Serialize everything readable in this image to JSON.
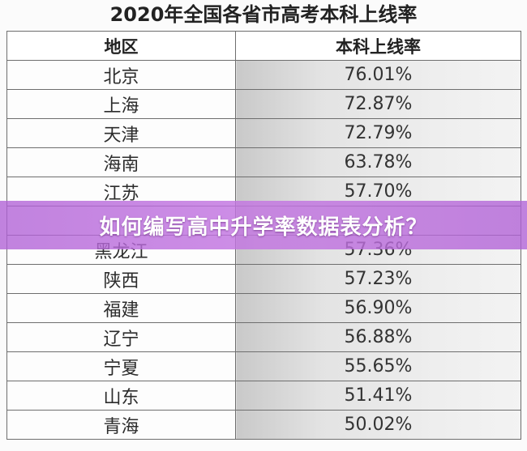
{
  "table": {
    "title": "2020年全国各省市高考本科上线率",
    "headers": [
      "地区",
      "本科上线率"
    ],
    "rows": [
      {
        "region": "北京",
        "rate": "76.01%"
      },
      {
        "region": "上海",
        "rate": "72.87%"
      },
      {
        "region": "天津",
        "rate": "72.79%"
      },
      {
        "region": "海南",
        "rate": "63.78%"
      },
      {
        "region": "江苏",
        "rate": "57.70%"
      },
      {
        "region": "",
        "rate": ""
      },
      {
        "region": "黑龙江",
        "rate": "57.36%"
      },
      {
        "region": "陕西",
        "rate": "57.23%"
      },
      {
        "region": "福建",
        "rate": "56.90%"
      },
      {
        "region": "辽宁",
        "rate": "56.88%"
      },
      {
        "region": "宁夏",
        "rate": "55.65%"
      },
      {
        "region": "山东",
        "rate": "51.41%"
      },
      {
        "region": "青海",
        "rate": "50.02%"
      }
    ]
  },
  "banner": {
    "text": "如何编写高中升学率数据表分析？",
    "color": "#b862dc"
  }
}
